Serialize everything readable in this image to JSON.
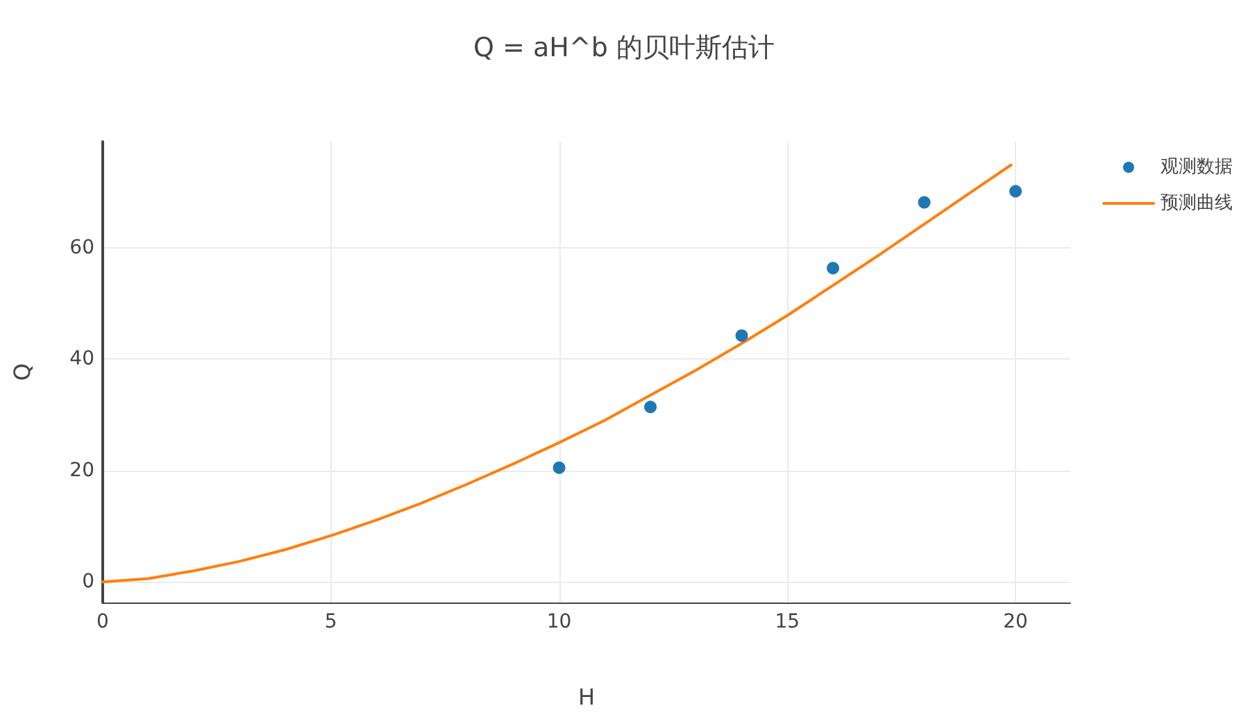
{
  "chart_data": {
    "type": "scatter",
    "title": "Q = aH^b 的贝叶斯估计",
    "xlabel": "H",
    "ylabel": "Q",
    "xlim": [
      0,
      21.2
    ],
    "ylim": [
      -3.7,
      79
    ],
    "xticks": [
      0,
      5,
      10,
      15,
      20
    ],
    "yticks": [
      0,
      20,
      40,
      60
    ],
    "grid": true,
    "legend": "top right",
    "series": [
      {
        "name": "观测数据",
        "color": "#1f77b4",
        "marker": "circle",
        "x": [
          10,
          12,
          14,
          16,
          18,
          20
        ],
        "values": [
          20.5,
          31.4,
          44.2,
          56.3,
          68.1,
          70.1
        ]
      },
      {
        "name": "预测曲线",
        "type": "line",
        "color": "#ff7f0e",
        "marker": "none",
        "line_style": "solid",
        "x": [
          0,
          1,
          2,
          3,
          4,
          5,
          6,
          7,
          8,
          9,
          10,
          11,
          12,
          13,
          14,
          15,
          16,
          17,
          18,
          19,
          19.9
        ],
        "values": [
          0,
          0.6,
          2.0,
          3.7,
          5.8,
          8.3,
          11.1,
          14.2,
          17.6,
          21.2,
          25.0,
          29.0,
          33.5,
          38.0,
          42.8,
          47.8,
          53.2,
          58.6,
          64.2,
          69.8,
          74.8
        ]
      }
    ]
  }
}
